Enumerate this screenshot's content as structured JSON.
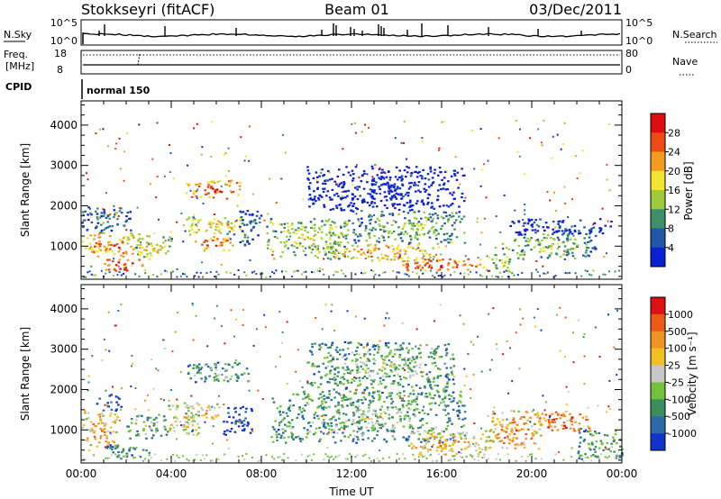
{
  "header": {
    "station": "Stokkseyri (fitACF)",
    "beam": "Beam 01",
    "date": "03/Dec/2011"
  },
  "nsky_panel": {
    "left_label": "N.Sky",
    "right_label": "N.Search",
    "ticks": [
      "10^5",
      "10^0"
    ]
  },
  "freq_panel": {
    "left_label_line1": "Freq.",
    "left_label_line2": "[MHz]",
    "left_ticks": [
      "18",
      "8"
    ],
    "right_label": "Nave",
    "right_ticks": [
      "80",
      "0"
    ]
  },
  "cpid": {
    "label": "CPID",
    "mode": "normal 150"
  },
  "x_axis": {
    "label": "Time UT",
    "ticks": [
      "00:00",
      "04:00",
      "08:00",
      "12:00",
      "16:00",
      "20:00",
      "00:00"
    ]
  },
  "chart_data": [
    {
      "type": "heatmap",
      "title": "",
      "xlabel": "Time UT",
      "ylabel": "Slant Range [km]",
      "xlim": [
        0,
        24
      ],
      "ylim": [
        180,
        4600
      ],
      "yticks": [
        "1000",
        "2000",
        "3000",
        "4000"
      ],
      "colorbar": {
        "label": "Power [dB]",
        "ticks": [
          "4",
          "8",
          "12",
          "16",
          "20",
          "24",
          "28"
        ],
        "colors": [
          "#0c1fd8",
          "#1f58a8",
          "#3d8f69",
          "#9ccc3e",
          "#f2e52f",
          "#f39a21",
          "#ec4b14",
          "#dc0d0d"
        ]
      },
      "regions": [
        {
          "t": [
            0.0,
            2.6
          ],
          "r": [
            700,
            1350
          ],
          "level": 0.78
        },
        {
          "t": [
            0.0,
            2.2
          ],
          "r": [
            1350,
            2000
          ],
          "level": 0.35
        },
        {
          "t": [
            1.0,
            2.8
          ],
          "r": [
            350,
            700
          ],
          "level": 0.92
        },
        {
          "t": [
            2.4,
            4.0
          ],
          "r": [
            700,
            1300
          ],
          "level": 0.6
        },
        {
          "t": [
            4.6,
            7.2
          ],
          "r": [
            2200,
            2650
          ],
          "level": 0.88
        },
        {
          "t": [
            4.4,
            7.2
          ],
          "r": [
            1300,
            1750
          ],
          "level": 0.62
        },
        {
          "t": [
            4.8,
            6.8
          ],
          "r": [
            900,
            1250
          ],
          "level": 0.82
        },
        {
          "t": [
            7.0,
            8.0
          ],
          "r": [
            1000,
            1900
          ],
          "level": 0.3
        },
        {
          "t": [
            8.2,
            12.0
          ],
          "r": [
            700,
            1700
          ],
          "level": 0.55
        },
        {
          "t": [
            11.0,
            16.0
          ],
          "r": [
            650,
            1100
          ],
          "level": 0.72
        },
        {
          "t": [
            12.0,
            17.0
          ],
          "r": [
            1100,
            1900
          ],
          "level": 0.45
        },
        {
          "t": [
            14.0,
            18.0
          ],
          "r": [
            400,
            700
          ],
          "level": 0.85
        },
        {
          "t": [
            10.0,
            17.0
          ],
          "r": [
            1900,
            3000
          ],
          "level": 0.1
        },
        {
          "t": [
            18.2,
            19.0
          ],
          "r": [
            400,
            1100
          ],
          "level": 0.55
        },
        {
          "t": [
            19.0,
            22.8
          ],
          "r": [
            700,
            1350
          ],
          "level": 0.48
        },
        {
          "t": [
            19.0,
            23.5
          ],
          "r": [
            1300,
            1700
          ],
          "level": 0.2
        }
      ]
    },
    {
      "type": "heatmap",
      "title": "",
      "xlabel": "Time UT",
      "ylabel": "Slant Range [km]",
      "xlim": [
        0,
        24
      ],
      "ylim": [
        180,
        4600
      ],
      "yticks": [
        "1000",
        "2000",
        "3000",
        "4000"
      ],
      "colorbar": {
        "label": "Velocity [m s⁻¹]",
        "ticks": [
          "1000",
          "500",
          "100",
          "25",
          "-25",
          "-100",
          "-500",
          "-1000"
        ],
        "colors": [
          "#1133cc",
          "#2b6aa9",
          "#3a8f60",
          "#73c23a",
          "#c8c8c8",
          "#f2c021",
          "#f39224",
          "#ec5a16",
          "#dd1111"
        ]
      },
      "regions": [
        {
          "t": [
            0.0,
            1.6
          ],
          "r": [
            600,
            1500
          ],
          "level": 0.75
        },
        {
          "t": [
            0.6,
            1.8
          ],
          "r": [
            1500,
            1900
          ],
          "level": 0.25
        },
        {
          "t": [
            1.0,
            3.0
          ],
          "r": [
            300,
            650
          ],
          "level": 0.35
        },
        {
          "t": [
            2.0,
            3.8
          ],
          "r": [
            800,
            1400
          ],
          "level": 0.45
        },
        {
          "t": [
            3.8,
            5.2
          ],
          "r": [
            900,
            1700
          ],
          "level": 0.65
        },
        {
          "t": [
            4.6,
            7.4
          ],
          "r": [
            2200,
            2700
          ],
          "level": 0.45
        },
        {
          "t": [
            4.6,
            6.2
          ],
          "r": [
            1200,
            1700
          ],
          "level": 0.7
        },
        {
          "t": [
            6.2,
            7.6
          ],
          "r": [
            900,
            1600
          ],
          "level": 0.15
        },
        {
          "t": [
            8.4,
            17.0
          ],
          "r": [
            700,
            2000
          ],
          "level": 0.45
        },
        {
          "t": [
            10.0,
            16.5
          ],
          "r": [
            2000,
            3200
          ],
          "level": 0.45
        },
        {
          "t": [
            14.5,
            18.2
          ],
          "r": [
            350,
            1000
          ],
          "level": 0.72
        },
        {
          "t": [
            18.0,
            20.4
          ],
          "r": [
            500,
            1500
          ],
          "level": 0.78
        },
        {
          "t": [
            20.2,
            22.6
          ],
          "r": [
            1000,
            1500
          ],
          "level": 0.92
        },
        {
          "t": [
            22.0,
            24.0
          ],
          "r": [
            300,
            1000
          ],
          "level": 0.45
        }
      ]
    }
  ]
}
